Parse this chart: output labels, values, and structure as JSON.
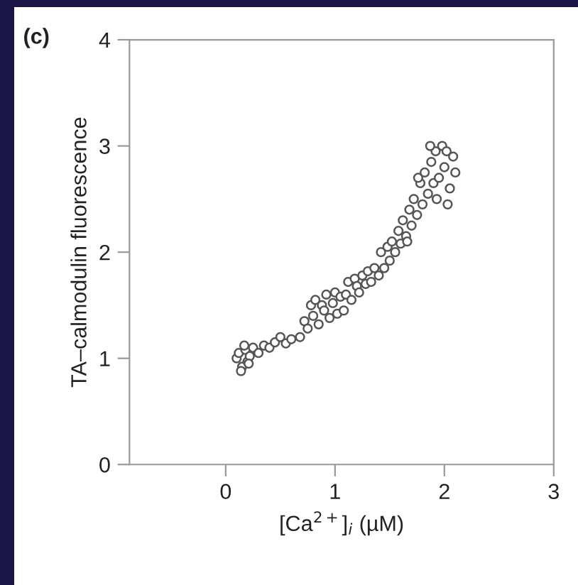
{
  "chart_data": {
    "type": "scatter",
    "title": "(c)",
    "xlabel": "[Ca$^{2+}$]$_{i}$ (µM)",
    "ylabel": "TA–calmodulin fluorescence",
    "xlim": [
      -0.88,
      3
    ],
    "ylim": [
      0,
      4
    ],
    "xticks": [
      0,
      1,
      2,
      3
    ],
    "yticks": [
      0,
      1,
      2,
      3,
      4
    ],
    "grid": false,
    "marker": "circle",
    "series": [
      {
        "color": "#555555",
        "x": [
          0.1,
          0.12,
          0.15,
          0.18,
          0.2,
          0.22,
          0.25,
          0.14,
          0.17,
          0.21,
          0.3,
          0.35,
          0.4,
          0.45,
          0.5,
          0.55,
          0.6,
          0.68,
          0.72,
          0.75,
          0.78,
          0.8,
          0.82,
          0.85,
          0.88,
          0.9,
          0.92,
          0.95,
          0.98,
          1.0,
          1.02,
          1.05,
          1.08,
          1.1,
          1.12,
          1.15,
          1.18,
          1.2,
          1.22,
          1.25,
          1.28,
          1.3,
          1.33,
          1.36,
          1.4,
          1.42,
          1.45,
          1.48,
          1.5,
          1.52,
          1.55,
          1.58,
          1.6,
          1.62,
          1.65,
          1.68,
          1.7,
          1.72,
          1.75,
          1.78,
          1.8,
          1.82,
          1.85,
          1.88,
          1.9,
          1.92,
          1.95,
          1.98,
          2.0,
          2.02,
          2.05,
          2.08,
          2.1,
          1.87,
          1.93,
          2.03,
          1.76,
          1.66
        ],
        "values": [
          1.0,
          1.05,
          0.92,
          1.08,
          0.97,
          1.02,
          1.1,
          0.88,
          1.12,
          0.95,
          1.05,
          1.12,
          1.1,
          1.15,
          1.2,
          1.14,
          1.18,
          1.2,
          1.35,
          1.28,
          1.5,
          1.4,
          1.55,
          1.32,
          1.5,
          1.45,
          1.6,
          1.38,
          1.52,
          1.62,
          1.42,
          1.58,
          1.45,
          1.6,
          1.72,
          1.55,
          1.75,
          1.68,
          1.62,
          1.78,
          1.7,
          1.82,
          1.72,
          1.85,
          1.78,
          2.0,
          1.85,
          2.05,
          1.92,
          2.1,
          2.0,
          2.2,
          2.08,
          2.3,
          2.15,
          2.4,
          2.25,
          2.5,
          2.35,
          2.65,
          2.45,
          2.75,
          2.55,
          2.85,
          2.65,
          2.95,
          2.7,
          3.0,
          2.8,
          2.95,
          2.6,
          2.9,
          2.75,
          3.0,
          2.5,
          2.45,
          2.7,
          2.1
        ]
      }
    ]
  }
}
